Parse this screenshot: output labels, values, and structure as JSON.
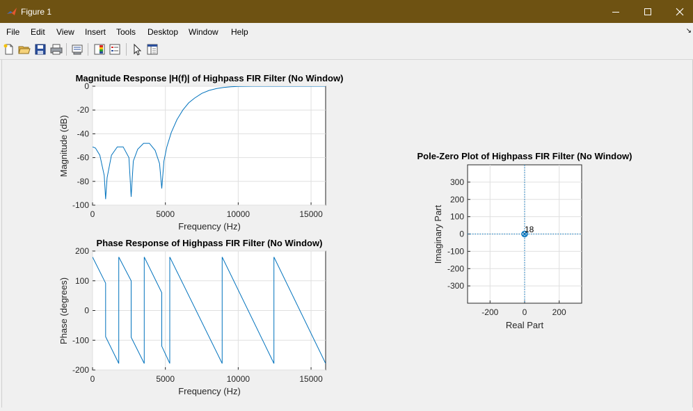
{
  "window": {
    "title": "Figure 1"
  },
  "menu": {
    "items": [
      "File",
      "Edit",
      "View",
      "Insert",
      "Tools",
      "Desktop",
      "Window",
      "Help"
    ]
  },
  "toolbar": {
    "icons": [
      "new-figure-icon",
      "open-file-icon",
      "save-icon",
      "print-icon",
      "link-plot-icon",
      "insert-colorbar-icon",
      "insert-legend-icon",
      "edit-plot-icon",
      "property-inspector-icon"
    ]
  },
  "plots": {
    "magnitude": {
      "title": "Magnitude Response |H(f)| of Highpass FIR Filter (No Window)",
      "xlabel": "Frequency (Hz)",
      "ylabel": "Magnitude (dB)"
    },
    "phase": {
      "title": "Phase Response of Highpass FIR Filter (No Window)",
      "xlabel": "Frequency (Hz)",
      "ylabel": "Phase (degrees)"
    },
    "polezero": {
      "title": "Pole-Zero Plot of Highpass FIR Filter (No Window)",
      "xlabel": "Real Part",
      "ylabel": "Imaginary Part",
      "annotation": "18"
    }
  },
  "chart_data": [
    {
      "type": "line",
      "title": "Magnitude Response |H(f)| of Highpass FIR Filter (No Window)",
      "xlabel": "Frequency (Hz)",
      "ylabel": "Magnitude (dB)",
      "xlim": [
        0,
        16000
      ],
      "ylim": [
        -100,
        0
      ],
      "xticks": [
        0,
        5000,
        10000,
        15000
      ],
      "yticks": [
        -100,
        -80,
        -60,
        -40,
        -20,
        0
      ],
      "grid": true,
      "series": [
        {
          "color": "#0072bd",
          "x": [
            0,
            200,
            500,
            800,
            900,
            1000,
            1300,
            1700,
            2100,
            2500,
            2650,
            2800,
            3100,
            3500,
            3900,
            4300,
            4600,
            4750,
            4900,
            5100,
            5400,
            5800,
            6200,
            6600,
            7000,
            7500,
            8000,
            8500,
            9000,
            9500,
            10000,
            11000,
            12000,
            13000,
            14000,
            15000,
            16000
          ],
          "y": [
            -51,
            -52,
            -58,
            -75,
            -95,
            -77,
            -58,
            -51,
            -51,
            -60,
            -93,
            -63,
            -53,
            -48,
            -48,
            -54,
            -65,
            -86,
            -63,
            -51,
            -39,
            -28,
            -20,
            -14,
            -10,
            -6,
            -3.5,
            -2,
            -1,
            -0.4,
            -0.1,
            0,
            0,
            0,
            0,
            0,
            0
          ]
        }
      ]
    },
    {
      "type": "line",
      "title": "Phase Response of Highpass FIR Filter (No Window)",
      "xlabel": "Frequency (Hz)",
      "ylabel": "Phase (degrees)",
      "xlim": [
        0,
        16000
      ],
      "ylim": [
        -200,
        200
      ],
      "xticks": [
        0,
        5000,
        10000,
        15000
      ],
      "yticks": [
        -200,
        -100,
        0,
        100,
        200
      ],
      "grid": true,
      "series": [
        {
          "color": "#0072bd",
          "x": [
            0,
            900,
            900,
            1800,
            1800,
            2650,
            2650,
            3550,
            3550,
            4750,
            4750,
            5300,
            5300,
            8900,
            8900,
            12450,
            12450,
            16000
          ],
          "y": [
            180,
            92,
            -88,
            -178,
            180,
            100,
            -90,
            -178,
            180,
            60,
            -120,
            -178,
            180,
            -178,
            180,
            -178,
            180,
            -178
          ]
        }
      ]
    },
    {
      "type": "scatter",
      "title": "Pole-Zero Plot of Highpass FIR Filter (No Window)",
      "xlabel": "Real Part",
      "ylabel": "Imaginary Part",
      "xlim": [
        -330,
        330
      ],
      "ylim": [
        -400,
        400
      ],
      "xticks": [
        -200,
        0,
        200
      ],
      "yticks": [
        -300,
        -200,
        -100,
        0,
        100,
        200,
        300
      ],
      "grid": true,
      "zeros": [
        {
          "x": 0,
          "y": 0,
          "multiplicity": 18
        }
      ],
      "poles": [
        {
          "x": 0,
          "y": 0
        }
      ],
      "annotations": [
        "18"
      ]
    }
  ]
}
